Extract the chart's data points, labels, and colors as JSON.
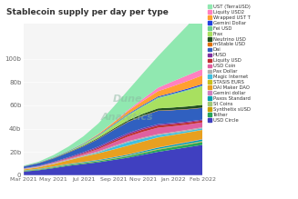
{
  "title": "Stablecoin supply per day per type",
  "watermark1": "Dune",
  "watermark2": "Analytics",
  "ylim": [
    0,
    130000000000
  ],
  "ytick_labels": [
    "0",
    "20b",
    "40b",
    "60b",
    "80b",
    "100b"
  ],
  "ytick_values": [
    0,
    20000000000,
    40000000000,
    60000000000,
    80000000000,
    100000000000
  ],
  "x_dates": [
    "Mar 2021",
    "May 2021",
    "Jul 2021",
    "Sep 2021",
    "Nov 2021",
    "Jan 2022",
    "Feb 2022"
  ],
  "num_points": 13,
  "background_color": "#ffffff",
  "plot_bg_color": "#f5f5f5",
  "series": [
    {
      "name": "USD Circle",
      "color": "#4040c0",
      "values": [
        3000000000,
        4200000000,
        6000000000,
        8000000000,
        9500000000,
        11000000000,
        13000000000,
        15000000000,
        17500000000,
        20000000000,
        22000000000,
        24000000000,
        26000000000
      ]
    },
    {
      "name": "Tether",
      "color": "#26a65b",
      "values": [
        400000000,
        500000000,
        600000000,
        700000000,
        800000000,
        900000000,
        1000000000,
        1200000000,
        1500000000,
        1800000000,
        2000000000,
        2200000000,
        2500000000
      ]
    },
    {
      "name": "Synthetix sUSD",
      "color": "#c8a000",
      "values": [
        200000000,
        230000000,
        250000000,
        270000000,
        280000000,
        300000000,
        320000000,
        350000000,
        380000000,
        400000000,
        420000000,
        440000000,
        460000000
      ]
    },
    {
      "name": "St Coins",
      "color": "#a0c878",
      "values": [
        100000000,
        120000000,
        140000000,
        160000000,
        180000000,
        200000000,
        220000000,
        250000000,
        280000000,
        300000000,
        320000000,
        340000000,
        360000000
      ]
    },
    {
      "name": "Paxos Standard",
      "color": "#00a0b0",
      "values": [
        300000000,
        350000000,
        400000000,
        450000000,
        500000000,
        600000000,
        700000000,
        800000000,
        950000000,
        1100000000,
        1200000000,
        1300000000,
        1400000000
      ]
    },
    {
      "name": "Gemini dollar",
      "color": "#d080c0",
      "values": [
        80000000,
        90000000,
        100000000,
        120000000,
        140000000,
        160000000,
        180000000,
        200000000,
        220000000,
        240000000,
        260000000,
        280000000,
        300000000
      ]
    },
    {
      "name": "DAI Maker DAO",
      "color": "#e8a020",
      "values": [
        800000000,
        1200000000,
        2000000000,
        3000000000,
        4500000000,
        5500000000,
        6500000000,
        7500000000,
        8000000000,
        8500000000,
        8200000000,
        8000000000,
        7800000000
      ]
    },
    {
      "name": "STASIS EURS",
      "color": "#c8c020",
      "values": [
        100000000,
        105000000,
        110000000,
        115000000,
        120000000,
        125000000,
        130000000,
        140000000,
        150000000,
        160000000,
        170000000,
        180000000,
        190000000
      ]
    },
    {
      "name": "Magic Internet",
      "color": "#40c0e0",
      "values": [
        0,
        0,
        0,
        50000000,
        200000000,
        800000000,
        2000000000,
        2800000000,
        2400000000,
        1800000000,
        1500000000,
        1300000000,
        1200000000
      ]
    },
    {
      "name": "Pax Dollar",
      "color": "#b0b0b0",
      "values": [
        500000000,
        600000000,
        700000000,
        750000000,
        800000000,
        850000000,
        900000000,
        950000000,
        950000000,
        950000000,
        950000000,
        950000000,
        950000000
      ]
    },
    {
      "name": "USD Coin",
      "color": "#e060a0",
      "values": [
        200000000,
        300000000,
        500000000,
        800000000,
        1200000000,
        2000000000,
        3000000000,
        4000000000,
        5000000000,
        5500000000,
        5000000000,
        4500000000,
        4200000000
      ]
    },
    {
      "name": "Liquity USD",
      "color": "#c03030",
      "values": [
        0,
        0,
        50000000,
        300000000,
        600000000,
        1000000000,
        1400000000,
        1700000000,
        1900000000,
        1900000000,
        1800000000,
        1700000000,
        1600000000
      ]
    },
    {
      "name": "HUSD",
      "color": "#8030a0",
      "values": [
        200000000,
        300000000,
        500000000,
        700000000,
        900000000,
        1100000000,
        1200000000,
        1300000000,
        1200000000,
        1100000000,
        1000000000,
        900000000,
        800000000
      ]
    },
    {
      "name": "Dai",
      "color": "#3060c0",
      "values": [
        1500000000,
        2200000000,
        3000000000,
        4000000000,
        5000000000,
        6500000000,
        8000000000,
        9500000000,
        10500000000,
        11500000000,
        11000000000,
        10500000000,
        10000000000
      ]
    },
    {
      "name": "mStable USD",
      "color": "#e07000",
      "values": [
        100000000,
        130000000,
        160000000,
        200000000,
        240000000,
        280000000,
        310000000,
        330000000,
        320000000,
        300000000,
        280000000,
        270000000,
        260000000
      ]
    },
    {
      "name": "Neutrino USD",
      "color": "#205020",
      "values": [
        100000000,
        150000000,
        220000000,
        350000000,
        500000000,
        700000000,
        950000000,
        1200000000,
        1500000000,
        1800000000,
        2000000000,
        2200000000,
        2400000000
      ]
    },
    {
      "name": "Frax",
      "color": "#a8e060",
      "values": [
        0,
        30000000,
        100000000,
        300000000,
        700000000,
        1500000000,
        2500000000,
        4000000000,
        6000000000,
        8500000000,
        11000000000,
        13500000000,
        16000000000
      ]
    },
    {
      "name": "Fei USD",
      "color": "#70d090",
      "values": [
        0,
        0,
        200000000,
        400000000,
        550000000,
        650000000,
        750000000,
        850000000,
        900000000,
        950000000,
        900000000,
        850000000,
        800000000
      ]
    },
    {
      "name": "Gemini Dollar",
      "color": "#2040e0",
      "values": [
        150000000,
        200000000,
        250000000,
        300000000,
        350000000,
        420000000,
        500000000,
        600000000,
        700000000,
        800000000,
        900000000,
        1000000000,
        1100000000
      ]
    },
    {
      "name": "Wrapped UST T",
      "color": "#ffa030",
      "values": [
        0,
        0,
        0,
        80000000,
        300000000,
        700000000,
        1500000000,
        2500000000,
        3500000000,
        4500000000,
        5500000000,
        6500000000,
        7500000000
      ]
    },
    {
      "name": "Liquity USD2",
      "color": "#ff80c0",
      "values": [
        0,
        0,
        0,
        0,
        0,
        100000000,
        400000000,
        900000000,
        1800000000,
        3000000000,
        4200000000,
        5000000000,
        5500000000
      ]
    },
    {
      "name": "UST (TerraUSD)",
      "color": "#90e8b0",
      "values": [
        500000000,
        900000000,
        2000000000,
        3500000000,
        6000000000,
        9000000000,
        13000000000,
        17000000000,
        22000000000,
        27000000000,
        35000000000,
        43000000000,
        53000000000
      ]
    }
  ]
}
